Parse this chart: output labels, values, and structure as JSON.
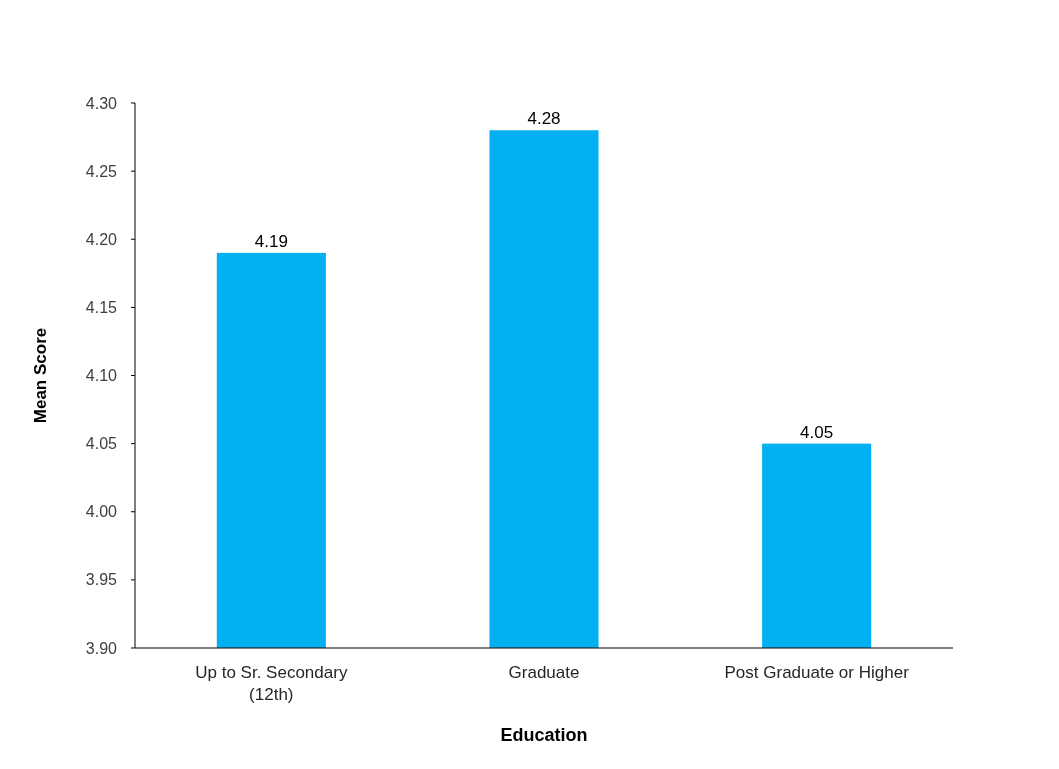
{
  "chart_data": {
    "type": "bar",
    "xlabel": "Education",
    "ylabel": "Mean Score",
    "categories": [
      "Up to Sr. Secondary (12th)",
      "Graduate",
      "Post Graduate or Higher"
    ],
    "values": [
      4.19,
      4.28,
      4.05
    ],
    "color": "#00b0f0",
    "ylim": [
      3.9,
      4.3
    ],
    "yticks": [
      {
        "value": 3.9,
        "label": "3.90"
      },
      {
        "value": 3.95,
        "label": "3.95"
      },
      {
        "value": 4.0,
        "label": "4.00"
      },
      {
        "value": 4.05,
        "label": "4.05"
      },
      {
        "value": 4.1,
        "label": "4.10"
      },
      {
        "value": 4.15,
        "label": "4.15"
      },
      {
        "value": 4.2,
        "label": "4.20"
      },
      {
        "value": 4.25,
        "label": "4.25"
      },
      {
        "value": 4.3,
        "label": "4.30"
      }
    ],
    "data_labels": true,
    "grid": false
  }
}
